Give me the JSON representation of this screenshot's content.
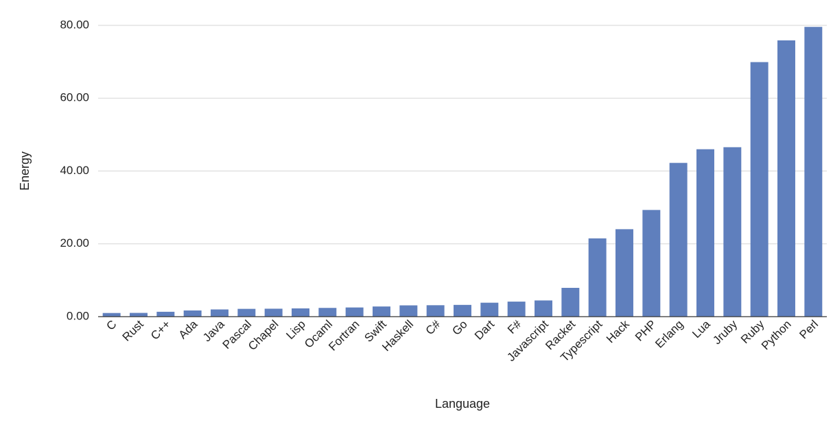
{
  "chart_data": {
    "type": "bar",
    "title": "",
    "xlabel": "Language",
    "ylabel": "Energy",
    "ylim": [
      0,
      80
    ],
    "yticks": [
      "0.00",
      "20.00",
      "40.00",
      "60.00",
      "80.00"
    ],
    "grid": true,
    "bar_color": "#5f7fbd",
    "categories": [
      "C",
      "Rust",
      "C++",
      "Ada",
      "Java",
      "Pascal",
      "Chapel",
      "Lisp",
      "Ocaml",
      "Fortran",
      "Swift",
      "Haskell",
      "C#",
      "Go",
      "Dart",
      "F#",
      "Javascript",
      "Racket",
      "Typescript",
      "Hack",
      "PHP",
      "Erlang",
      "Lua",
      "Jruby",
      "Ruby",
      "Python",
      "Perl"
    ],
    "values": [
      1.0,
      1.03,
      1.34,
      1.7,
      1.98,
      2.14,
      2.18,
      2.27,
      2.4,
      2.52,
      2.79,
      3.1,
      3.14,
      3.23,
      3.83,
      4.13,
      4.45,
      7.91,
      21.5,
      24.02,
      29.3,
      42.23,
      45.98,
      46.54,
      69.91,
      75.88,
      79.58
    ]
  }
}
